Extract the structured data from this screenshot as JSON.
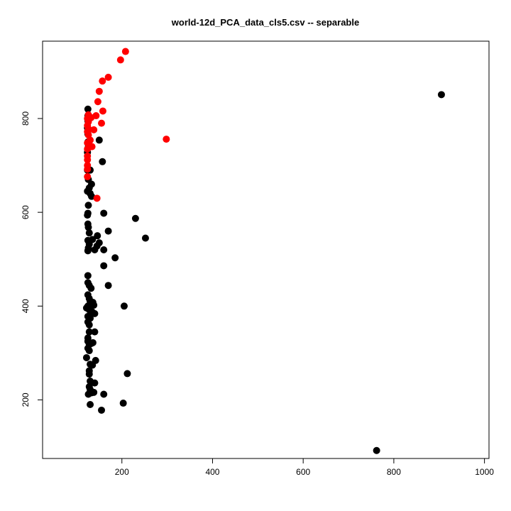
{
  "chart_data": {
    "type": "scatter",
    "title": "world-12d_PCA_data_cls5.csv  --  separable",
    "xlabel": "",
    "ylabel": "",
    "xlim": [
      25,
      1010
    ],
    "ylim": [
      75,
      965
    ],
    "xticks": [
      "200",
      "400",
      "600",
      "800",
      "1000"
    ],
    "yticks": [
      "200",
      "400",
      "600",
      "800"
    ],
    "grid": false,
    "legend": "none",
    "series": [
      {
        "color": "#000000",
        "points": [
          [
            125,
            820
          ],
          [
            125,
            806
          ],
          [
            125,
            795
          ],
          [
            124,
            780
          ],
          [
            125,
            767
          ],
          [
            125,
            750
          ],
          [
            126,
            740
          ],
          [
            124,
            728
          ],
          [
            124,
            690
          ],
          [
            130,
            690
          ],
          [
            126,
            670
          ],
          [
            133,
            660
          ],
          [
            128,
            652
          ],
          [
            124,
            645
          ],
          [
            130,
            640
          ],
          [
            133,
            634
          ],
          [
            126,
            615
          ],
          [
            125,
            598
          ],
          [
            124,
            594
          ],
          [
            125,
            575
          ],
          [
            126,
            568
          ],
          [
            128,
            556
          ],
          [
            125,
            540
          ],
          [
            128,
            532
          ],
          [
            126,
            524
          ],
          [
            125,
            518
          ],
          [
            135,
            542
          ],
          [
            140,
            520
          ],
          [
            145,
            528
          ],
          [
            146,
            550
          ],
          [
            150,
            535
          ],
          [
            160,
            520
          ],
          [
            185,
            503
          ],
          [
            160,
            486
          ],
          [
            125,
            465
          ],
          [
            125,
            450
          ],
          [
            128,
            444
          ],
          [
            132,
            438
          ],
          [
            125,
            424
          ],
          [
            128,
            416
          ],
          [
            130,
            410
          ],
          [
            136,
            408
          ],
          [
            138,
            402
          ],
          [
            125,
            400
          ],
          [
            122,
            396
          ],
          [
            128,
            392
          ],
          [
            134,
            388
          ],
          [
            140,
            384
          ],
          [
            125,
            378
          ],
          [
            130,
            374
          ],
          [
            125,
            366
          ],
          [
            128,
            360
          ],
          [
            128,
            345
          ],
          [
            140,
            345
          ],
          [
            125,
            332
          ],
          [
            125,
            325
          ],
          [
            128,
            318
          ],
          [
            132,
            320
          ],
          [
            136,
            322
          ],
          [
            125,
            310
          ],
          [
            128,
            305
          ],
          [
            122,
            290
          ],
          [
            130,
            276
          ],
          [
            135,
            274
          ],
          [
            142,
            284
          ],
          [
            128,
            262
          ],
          [
            128,
            255
          ],
          [
            130,
            240
          ],
          [
            140,
            236
          ],
          [
            128,
            228
          ],
          [
            130,
            222
          ],
          [
            133,
            215
          ],
          [
            138,
            216
          ],
          [
            126,
            212
          ],
          [
            160,
            212
          ],
          [
            130,
            190
          ],
          [
            155,
            178
          ],
          [
            203,
            193
          ],
          [
            212,
            256
          ],
          [
            205,
            400
          ],
          [
            170,
            444
          ],
          [
            230,
            587
          ],
          [
            252,
            545
          ],
          [
            170,
            560
          ],
          [
            160,
            598
          ],
          [
            150,
            754
          ],
          [
            157,
            708
          ],
          [
            905,
            851
          ],
          [
            762,
            92
          ]
        ]
      },
      {
        "color": "#ff0000",
        "points": [
          [
            208,
            943
          ],
          [
            197,
            925
          ],
          [
            170,
            888
          ],
          [
            157,
            880
          ],
          [
            150,
            858
          ],
          [
            147,
            836
          ],
          [
            158,
            816
          ],
          [
            155,
            790
          ],
          [
            143,
            806
          ],
          [
            132,
            802
          ],
          [
            126,
            808
          ],
          [
            124,
            800
          ],
          [
            126,
            793
          ],
          [
            124,
            785
          ],
          [
            126,
            778
          ],
          [
            138,
            776
          ],
          [
            124,
            772
          ],
          [
            126,
            765
          ],
          [
            130,
            754
          ],
          [
            124,
            748
          ],
          [
            128,
            742
          ],
          [
            134,
            740
          ],
          [
            124,
            735
          ],
          [
            124,
            720
          ],
          [
            124,
            712
          ],
          [
            124,
            700
          ],
          [
            124,
            692
          ],
          [
            124,
            676
          ],
          [
            145,
            630
          ],
          [
            298,
            756
          ]
        ]
      }
    ]
  }
}
